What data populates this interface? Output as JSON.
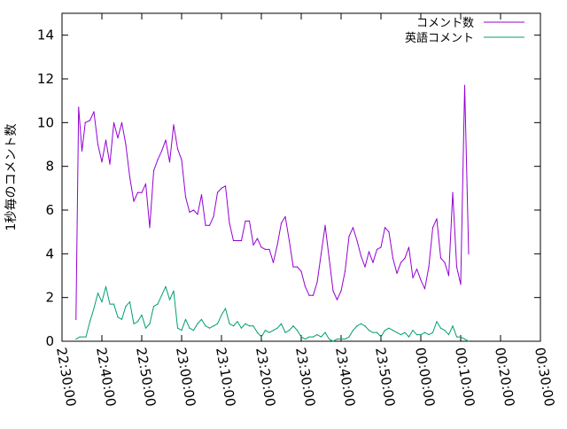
{
  "chart_data": {
    "type": "line",
    "title": "",
    "xlabel": "",
    "ylabel": "1秒毎のコメント数",
    "xlim": [
      "22:30:00",
      "00:30:00"
    ],
    "ylim": [
      0,
      15
    ],
    "x_ticks": [
      "22:30:00",
      "22:40:00",
      "22:50:00",
      "23:00:00",
      "23:10:00",
      "23:20:00",
      "23:30:00",
      "23:40:00",
      "23:50:00",
      "00:00:00",
      "00:10:00",
      "00:20:00",
      "00:30:00"
    ],
    "y_ticks": [
      0,
      2,
      4,
      6,
      8,
      10,
      12,
      14
    ],
    "grid": false,
    "legend": "top-right",
    "series": [
      {
        "name": "コメント数",
        "color": "#9400d3",
        "points": [
          [
            "22:33:30",
            1.0
          ],
          [
            "22:34:10",
            10.7
          ],
          [
            "22:35:00",
            8.7
          ],
          [
            "22:35:50",
            10.0
          ],
          [
            "22:37:00",
            10.1
          ],
          [
            "22:38:00",
            10.5
          ],
          [
            "22:39:00",
            9.0
          ],
          [
            "22:40:00",
            8.2
          ],
          [
            "22:41:00",
            9.2
          ],
          [
            "22:42:00",
            8.1
          ],
          [
            "22:43:00",
            10.0
          ],
          [
            "22:44:00",
            9.3
          ],
          [
            "22:45:00",
            10.0
          ],
          [
            "22:46:00",
            9.0
          ],
          [
            "22:47:00",
            7.5
          ],
          [
            "22:48:00",
            6.4
          ],
          [
            "22:49:00",
            6.8
          ],
          [
            "22:50:00",
            6.8
          ],
          [
            "22:51:00",
            7.2
          ],
          [
            "22:52:00",
            5.2
          ],
          [
            "22:53:00",
            7.8
          ],
          [
            "22:54:00",
            8.3
          ],
          [
            "22:55:00",
            8.7
          ],
          [
            "22:56:00",
            9.2
          ],
          [
            "22:57:00",
            8.2
          ],
          [
            "22:58:00",
            9.9
          ],
          [
            "22:59:00",
            8.8
          ],
          [
            "23:00:00",
            8.3
          ],
          [
            "23:01:00",
            6.6
          ],
          [
            "23:02:00",
            5.9
          ],
          [
            "23:03:00",
            6.0
          ],
          [
            "23:04:00",
            5.8
          ],
          [
            "23:05:00",
            6.7
          ],
          [
            "23:06:00",
            5.3
          ],
          [
            "23:07:00",
            5.3
          ],
          [
            "23:08:00",
            5.7
          ],
          [
            "23:09:00",
            6.8
          ],
          [
            "23:10:00",
            7.0
          ],
          [
            "23:11:00",
            7.1
          ],
          [
            "23:12:00",
            5.4
          ],
          [
            "23:13:00",
            4.6
          ],
          [
            "23:14:00",
            4.6
          ],
          [
            "23:15:00",
            4.6
          ],
          [
            "23:16:00",
            5.5
          ],
          [
            "23:17:00",
            5.5
          ],
          [
            "23:18:00",
            4.4
          ],
          [
            "23:19:00",
            4.7
          ],
          [
            "23:20:00",
            4.3
          ],
          [
            "23:21:00",
            4.2
          ],
          [
            "23:22:00",
            4.2
          ],
          [
            "23:23:00",
            3.6
          ],
          [
            "23:24:00",
            4.4
          ],
          [
            "23:25:00",
            5.4
          ],
          [
            "23:26:00",
            5.7
          ],
          [
            "23:27:00",
            4.6
          ],
          [
            "23:28:00",
            3.4
          ],
          [
            "23:29:00",
            3.4
          ],
          [
            "23:30:00",
            3.2
          ],
          [
            "23:31:00",
            2.5
          ],
          [
            "23:32:00",
            2.1
          ],
          [
            "23:33:00",
            2.1
          ],
          [
            "23:34:00",
            2.7
          ],
          [
            "23:35:00",
            4.0
          ],
          [
            "23:36:00",
            5.3
          ],
          [
            "23:37:00",
            3.8
          ],
          [
            "23:38:00",
            2.3
          ],
          [
            "23:39:00",
            1.9
          ],
          [
            "23:40:00",
            2.3
          ],
          [
            "23:41:00",
            3.2
          ],
          [
            "23:42:00",
            4.8
          ],
          [
            "23:43:00",
            5.2
          ],
          [
            "23:44:00",
            4.6
          ],
          [
            "23:45:00",
            3.9
          ],
          [
            "23:46:00",
            3.4
          ],
          [
            "23:47:00",
            4.1
          ],
          [
            "23:48:00",
            3.6
          ],
          [
            "23:49:00",
            4.2
          ],
          [
            "23:50:00",
            4.3
          ],
          [
            "23:51:00",
            5.2
          ],
          [
            "23:52:00",
            5.0
          ],
          [
            "23:53:00",
            3.8
          ],
          [
            "23:54:00",
            3.1
          ],
          [
            "23:55:00",
            3.6
          ],
          [
            "23:56:00",
            3.8
          ],
          [
            "23:57:00",
            4.3
          ],
          [
            "23:58:00",
            2.9
          ],
          [
            "23:59:00",
            3.3
          ],
          [
            "00:00:00",
            2.8
          ],
          [
            "00:01:00",
            2.4
          ],
          [
            "00:02:00",
            3.4
          ],
          [
            "00:03:00",
            5.2
          ],
          [
            "00:04:00",
            5.6
          ],
          [
            "00:05:00",
            3.8
          ],
          [
            "00:06:00",
            3.6
          ],
          [
            "00:07:00",
            3.0
          ],
          [
            "00:08:00",
            6.8
          ],
          [
            "00:09:00",
            3.4
          ],
          [
            "00:10:00",
            2.6
          ],
          [
            "00:11:00",
            11.7
          ],
          [
            "00:12:00",
            4.0
          ]
        ]
      },
      {
        "name": "英語コメント",
        "color": "#009e73",
        "points": [
          [
            "22:33:30",
            0.1
          ],
          [
            "22:34:30",
            0.2
          ],
          [
            "22:36:00",
            0.2
          ],
          [
            "22:37:00",
            0.9
          ],
          [
            "22:38:00",
            1.5
          ],
          [
            "22:39:00",
            2.2
          ],
          [
            "22:40:00",
            1.8
          ],
          [
            "22:41:00",
            2.5
          ],
          [
            "22:42:00",
            1.7
          ],
          [
            "22:43:00",
            1.7
          ],
          [
            "22:44:00",
            1.1
          ],
          [
            "22:45:00",
            1.0
          ],
          [
            "22:46:00",
            1.6
          ],
          [
            "22:47:00",
            1.8
          ],
          [
            "22:48:00",
            0.8
          ],
          [
            "22:49:00",
            0.9
          ],
          [
            "22:50:00",
            1.2
          ],
          [
            "22:51:00",
            0.6
          ],
          [
            "22:52:00",
            0.8
          ],
          [
            "22:53:00",
            1.6
          ],
          [
            "22:54:00",
            1.7
          ],
          [
            "22:55:00",
            2.1
          ],
          [
            "22:56:00",
            2.5
          ],
          [
            "22:57:00",
            1.9
          ],
          [
            "22:58:00",
            2.3
          ],
          [
            "22:59:00",
            0.6
          ],
          [
            "23:00:00",
            0.5
          ],
          [
            "23:01:00",
            1.0
          ],
          [
            "23:02:00",
            0.6
          ],
          [
            "23:03:00",
            0.5
          ],
          [
            "23:04:00",
            0.8
          ],
          [
            "23:05:00",
            1.0
          ],
          [
            "23:06:00",
            0.7
          ],
          [
            "23:07:00",
            0.6
          ],
          [
            "23:08:00",
            0.7
          ],
          [
            "23:09:00",
            0.8
          ],
          [
            "23:10:00",
            1.2
          ],
          [
            "23:11:00",
            1.5
          ],
          [
            "23:12:00",
            0.8
          ],
          [
            "23:13:00",
            0.7
          ],
          [
            "23:14:00",
            0.9
          ],
          [
            "23:15:00",
            0.6
          ],
          [
            "23:16:00",
            0.8
          ],
          [
            "23:17:00",
            0.7
          ],
          [
            "23:18:00",
            0.7
          ],
          [
            "23:19:00",
            0.4
          ],
          [
            "23:20:00",
            0.2
          ],
          [
            "23:21:00",
            0.5
          ],
          [
            "23:22:00",
            0.4
          ],
          [
            "23:23:00",
            0.5
          ],
          [
            "23:24:00",
            0.6
          ],
          [
            "23:25:00",
            0.8
          ],
          [
            "23:26:00",
            0.4
          ],
          [
            "23:27:00",
            0.5
          ],
          [
            "23:28:00",
            0.7
          ],
          [
            "23:29:00",
            0.5
          ],
          [
            "23:30:00",
            0.2
          ],
          [
            "23:31:00",
            0.1
          ],
          [
            "23:32:00",
            0.2
          ],
          [
            "23:33:00",
            0.2
          ],
          [
            "23:34:00",
            0.3
          ],
          [
            "23:35:00",
            0.2
          ],
          [
            "23:36:00",
            0.4
          ],
          [
            "23:37:00",
            0.1
          ],
          [
            "23:38:00",
            0.0
          ],
          [
            "23:39:00",
            0.1
          ],
          [
            "23:40:00",
            0.1
          ],
          [
            "23:41:00",
            0.1
          ],
          [
            "23:42:00",
            0.2
          ],
          [
            "23:43:00",
            0.5
          ],
          [
            "23:44:00",
            0.7
          ],
          [
            "23:45:00",
            0.8
          ],
          [
            "23:46:00",
            0.7
          ],
          [
            "23:47:00",
            0.5
          ],
          [
            "23:48:00",
            0.4
          ],
          [
            "23:49:00",
            0.4
          ],
          [
            "23:50:00",
            0.2
          ],
          [
            "23:51:00",
            0.5
          ],
          [
            "23:52:00",
            0.6
          ],
          [
            "23:53:00",
            0.5
          ],
          [
            "23:54:00",
            0.4
          ],
          [
            "23:55:00",
            0.3
          ],
          [
            "23:56:00",
            0.4
          ],
          [
            "23:57:00",
            0.2
          ],
          [
            "23:58:00",
            0.5
          ],
          [
            "23:59:00",
            0.3
          ],
          [
            "00:00:00",
            0.3
          ],
          [
            "00:01:00",
            0.4
          ],
          [
            "00:02:00",
            0.3
          ],
          [
            "00:03:00",
            0.4
          ],
          [
            "00:04:00",
            0.9
          ],
          [
            "00:05:00",
            0.6
          ],
          [
            "00:06:00",
            0.5
          ],
          [
            "00:07:00",
            0.3
          ],
          [
            "00:08:00",
            0.7
          ],
          [
            "00:09:00",
            0.2
          ],
          [
            "00:10:00",
            0.2
          ],
          [
            "00:11:00",
            0.1
          ],
          [
            "00:12:00",
            0.0
          ]
        ]
      }
    ]
  }
}
